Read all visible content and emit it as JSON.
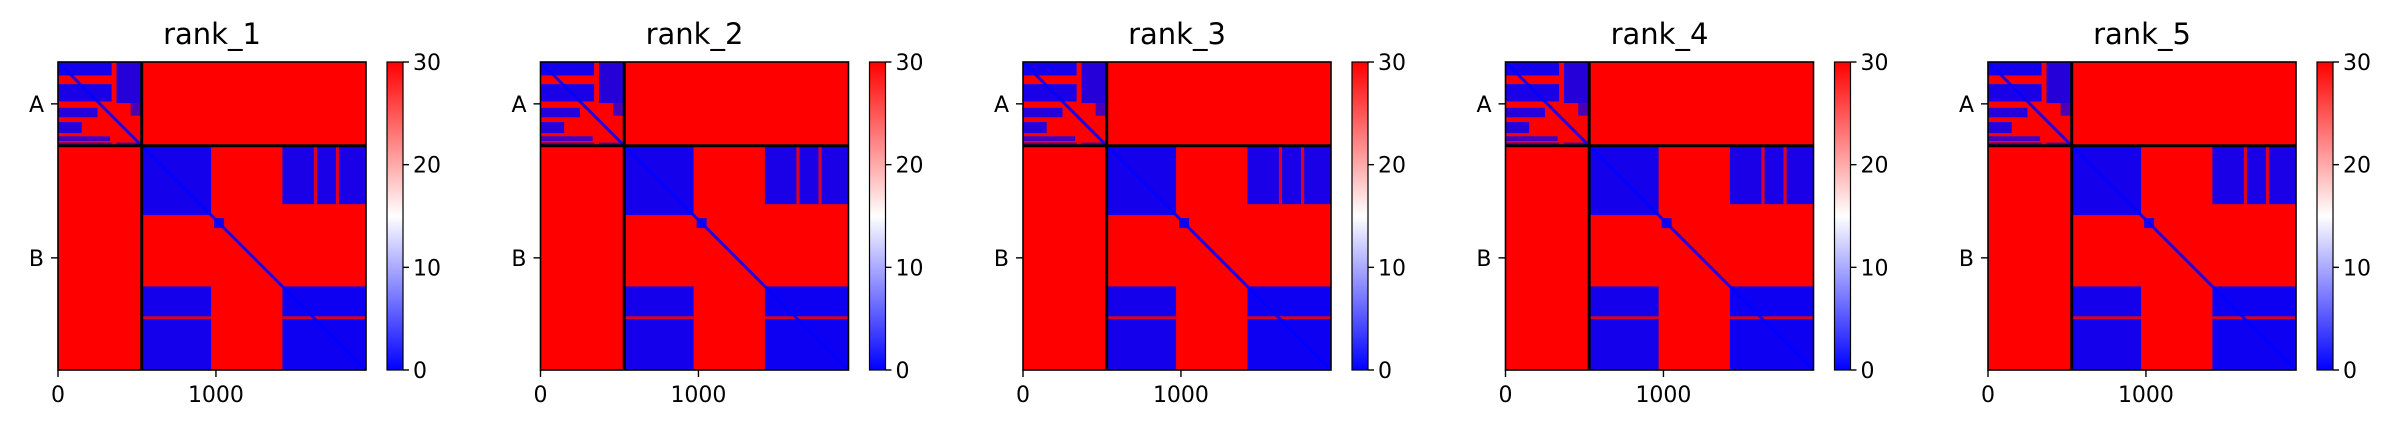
{
  "chart_data": [
    {
      "type": "heatmap",
      "title": "rank_1",
      "colorbar": {
        "min": 0,
        "max": 30,
        "ticks": [
          0,
          10,
          20,
          30
        ],
        "colormap": "bwr"
      },
      "x_ticks": [
        "0",
        "1000"
      ],
      "y_ticks": [
        "A",
        "B"
      ],
      "xlim": [
        0,
        1950
      ],
      "ylim": [
        0,
        1950
      ],
      "chain_boundary": 530
    },
    {
      "type": "heatmap",
      "title": "rank_2",
      "colorbar": {
        "min": 0,
        "max": 30,
        "ticks": [
          0,
          10,
          20,
          30
        ],
        "colormap": "bwr"
      },
      "x_ticks": [
        "0",
        "1000"
      ],
      "y_ticks": [
        "A",
        "B"
      ],
      "xlim": [
        0,
        1950
      ],
      "ylim": [
        0,
        1950
      ],
      "chain_boundary": 530
    },
    {
      "type": "heatmap",
      "title": "rank_3",
      "colorbar": {
        "min": 0,
        "max": 30,
        "ticks": [
          0,
          10,
          20,
          30
        ],
        "colormap": "bwr"
      },
      "x_ticks": [
        "0",
        "1000"
      ],
      "y_ticks": [
        "A",
        "B"
      ],
      "xlim": [
        0,
        1950
      ],
      "ylim": [
        0,
        1950
      ],
      "chain_boundary": 530
    },
    {
      "type": "heatmap",
      "title": "rank_4",
      "colorbar": {
        "min": 0,
        "max": 30,
        "ticks": [
          0,
          10,
          20,
          30
        ],
        "colormap": "bwr"
      },
      "x_ticks": [
        "0",
        "1000"
      ],
      "y_ticks": [
        "A",
        "B"
      ],
      "xlim": [
        0,
        1950
      ],
      "ylim": [
        0,
        1950
      ],
      "chain_boundary": 530
    },
    {
      "type": "heatmap",
      "title": "rank_5",
      "colorbar": {
        "min": 0,
        "max": 30,
        "ticks": [
          0,
          10,
          20,
          30
        ],
        "colormap": "bwr"
      },
      "x_ticks": [
        "0",
        "1000"
      ],
      "y_ticks": [
        "A",
        "B"
      ],
      "xlim": [
        0,
        1950
      ],
      "ylim": [
        0,
        1950
      ],
      "chain_boundary": 530
    }
  ],
  "colors": {
    "low": "#0000ff",
    "mid": "#ffffff",
    "high": "#ff0000",
    "boundary": "#000000"
  }
}
